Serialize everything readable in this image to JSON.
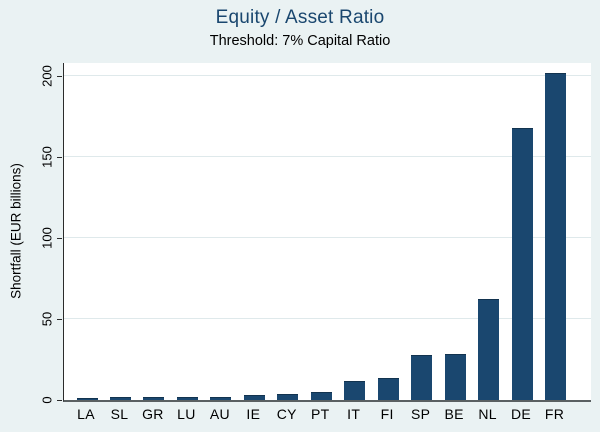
{
  "header": {
    "title": "Equity / Asset Ratio",
    "subtitle": "Threshold: 7% Capital Ratio"
  },
  "chart_data": {
    "type": "bar",
    "title": "Equity / Asset Ratio",
    "subtitle": "Threshold: 7% Capital Ratio",
    "categories": [
      "LA",
      "SL",
      "GR",
      "LU",
      "AU",
      "IE",
      "CY",
      "PT",
      "IT",
      "FI",
      "SP",
      "BE",
      "NL",
      "DE",
      "FR"
    ],
    "values": [
      0.8,
      1,
      1,
      1.2,
      1.5,
      2.5,
      3,
      4.5,
      11,
      13,
      27,
      28,
      62,
      167,
      201
    ],
    "xlabel": "",
    "ylabel": "Shortfall (EUR billions)",
    "yticks": [
      0,
      50,
      100,
      150,
      200
    ],
    "ylim": [
      0,
      208
    ],
    "grid": "horizontal-gridlines-at-yticks",
    "legend": "none",
    "colors": {
      "bar": "#1a476f",
      "background": "#eaf2f3",
      "plot_background": "#ffffff",
      "gridline": "#dfe9eb",
      "title": "#1a476f",
      "text": "#000000"
    }
  }
}
